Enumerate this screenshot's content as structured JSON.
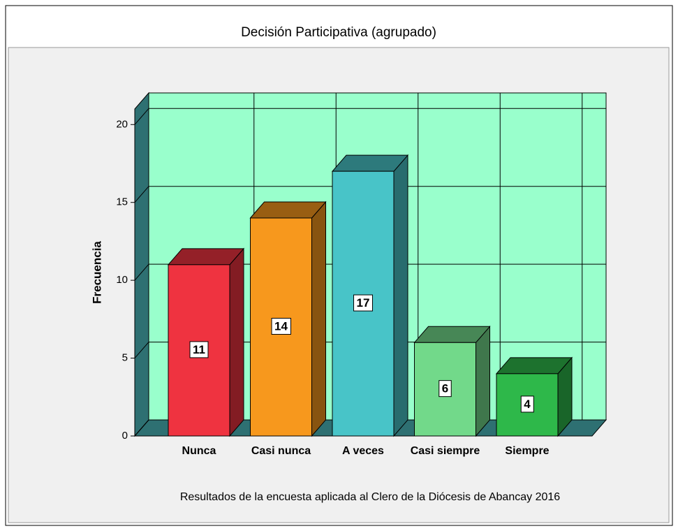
{
  "chart_data": {
    "type": "bar3d",
    "title": "Decisión Participativa (agrupado)",
    "ylabel": "Frecuencia",
    "caption": "Resultados de la encuesta aplicada al Clero de la Diócesis de Abancay 2016",
    "categories": [
      "Nunca",
      "Casi nunca",
      "A veces",
      "Casi siempre",
      "Siempre"
    ],
    "values": [
      11,
      14,
      17,
      6,
      4
    ],
    "colors": [
      "#ef3340",
      "#f7981d",
      "#48c4c8",
      "#72d98a",
      "#2eb84a"
    ],
    "ylim": [
      0,
      21
    ],
    "yticks": [
      0,
      5,
      10,
      15,
      20
    ],
    "grid": true
  }
}
